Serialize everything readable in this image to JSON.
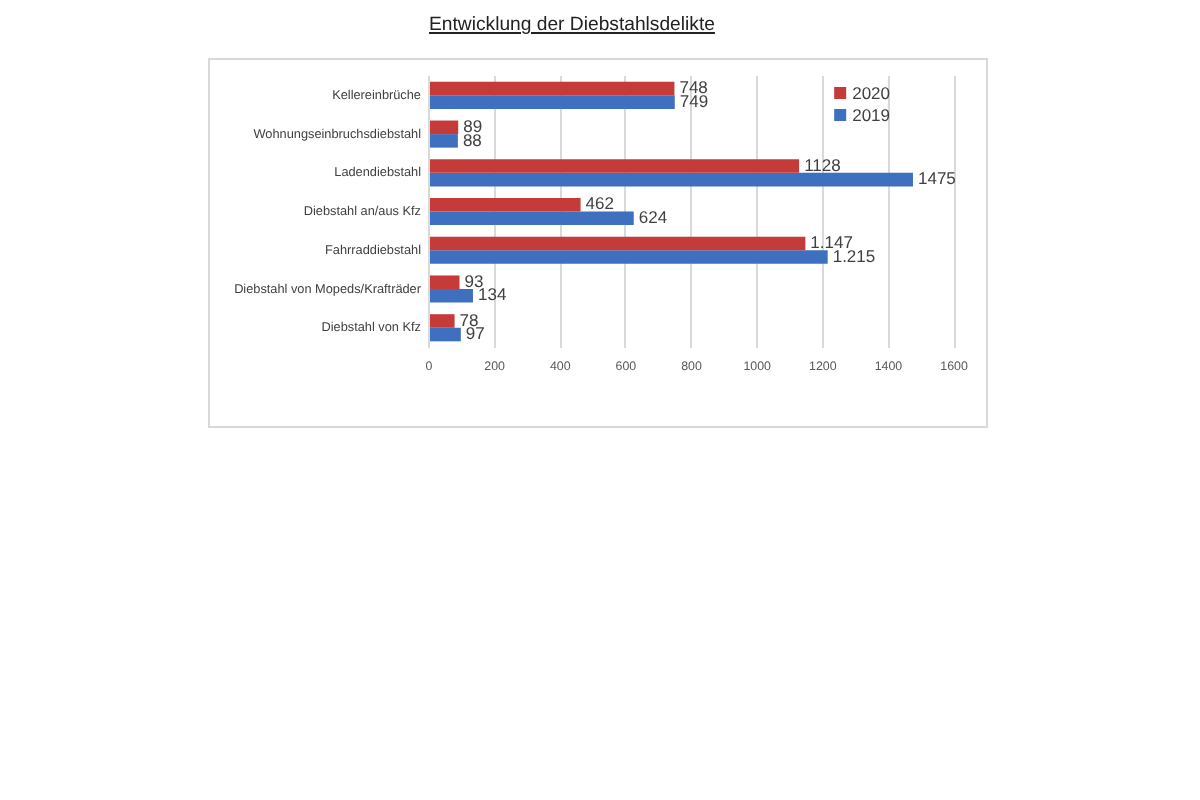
{
  "chart_data": {
    "type": "bar",
    "orientation": "horizontal",
    "title": "Entwicklung der Diebstahlsdelikte",
    "categories": [
      "Kellereinbrüche",
      "Wohnungseinbruchsdiebstahl",
      "Ladendiebstahl",
      "Diebstahl an/aus Kfz",
      "Fahrraddiebstahl",
      "Diebstahl von Mopeds/Krafträder",
      "Diebstahl von Kfz"
    ],
    "series": [
      {
        "name": "2020",
        "color": "#c43b3a",
        "values": [
          748,
          89,
          1128,
          462,
          1147,
          93,
          78
        ],
        "value_labels": [
          "748",
          "89",
          "1128",
          "462",
          "1.147",
          "93",
          "78"
        ]
      },
      {
        "name": "2019",
        "color": "#3f6fbf",
        "values": [
          749,
          88,
          1475,
          624,
          1215,
          134,
          97
        ],
        "value_labels": [
          "749",
          "88",
          "1475",
          "624",
          "1.215",
          "134",
          "97"
        ]
      }
    ],
    "xlim": [
      0,
      1600
    ],
    "xticks": [
      0,
      200,
      400,
      600,
      800,
      1000,
      1200,
      1400,
      1600
    ],
    "grid": "x",
    "legend": "top right"
  }
}
